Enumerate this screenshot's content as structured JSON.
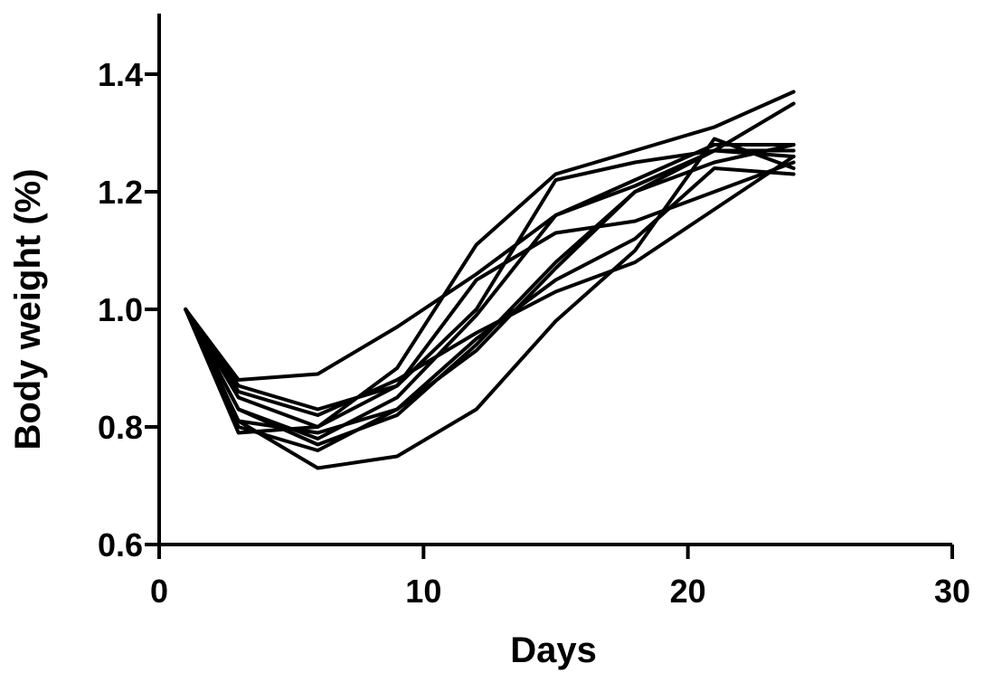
{
  "chart_data": {
    "type": "line",
    "title": "",
    "xlabel": "Days",
    "ylabel": "Body weight (%)",
    "xlim": [
      0,
      30
    ],
    "ylim": [
      0.6,
      1.5
    ],
    "xticks": [
      0,
      10,
      20,
      30
    ],
    "yticks": [
      0.6,
      0.8,
      1.0,
      1.2,
      1.4
    ],
    "xtick_labels": [
      "0",
      "10",
      "20",
      "30"
    ],
    "ytick_labels": [
      "0.6",
      "0.8",
      "1.0",
      "1.2",
      "1.4"
    ],
    "grid": false,
    "legend": "none",
    "line_color": "#000000",
    "series": [
      {
        "x": [
          1,
          3,
          6,
          9,
          12,
          15,
          18,
          21,
          24
        ],
        "values": [
          1.0,
          0.79,
          0.8,
          0.9,
          1.11,
          1.23,
          1.27,
          1.31,
          1.37
        ]
      },
      {
        "x": [
          1,
          3,
          6,
          9,
          12,
          15,
          18,
          21,
          24
        ],
        "values": [
          1.0,
          0.81,
          0.79,
          0.83,
          0.93,
          1.07,
          1.2,
          1.27,
          1.35
        ]
      },
      {
        "x": [
          1,
          3,
          6,
          9,
          12,
          15,
          18,
          21,
          24
        ],
        "values": [
          1.0,
          0.88,
          0.89,
          0.97,
          1.06,
          1.16,
          1.22,
          1.28,
          1.28
        ]
      },
      {
        "x": [
          1,
          3,
          6,
          9,
          12,
          15,
          18,
          21,
          24
        ],
        "values": [
          1.0,
          0.83,
          0.77,
          0.82,
          0.94,
          1.08,
          1.2,
          1.25,
          1.28
        ]
      },
      {
        "x": [
          1,
          3,
          6,
          9,
          12,
          15,
          18,
          21,
          24
        ],
        "values": [
          1.0,
          0.87,
          0.83,
          0.87,
          1.0,
          1.22,
          1.25,
          1.27,
          1.27
        ]
      },
      {
        "x": [
          1,
          3,
          6,
          9,
          12,
          15,
          18,
          21,
          24
        ],
        "values": [
          1.0,
          0.85,
          0.8,
          0.87,
          1.05,
          1.13,
          1.15,
          1.2,
          1.25
        ]
      },
      {
        "x": [
          1,
          3,
          6,
          9,
          12,
          15,
          18,
          21,
          24
        ],
        "values": [
          1.0,
          0.8,
          0.76,
          0.83,
          0.95,
          1.05,
          1.12,
          1.24,
          1.23
        ]
      },
      {
        "x": [
          1,
          3,
          6,
          9,
          12,
          15,
          18,
          21,
          24
        ],
        "values": [
          1.0,
          0.86,
          0.82,
          0.88,
          0.96,
          1.03,
          1.08,
          1.17,
          1.26
        ]
      },
      {
        "x": [
          1,
          3,
          6,
          9,
          12,
          15,
          18,
          21,
          24
        ],
        "values": [
          1.0,
          0.81,
          0.73,
          0.75,
          0.83,
          0.98,
          1.1,
          1.29,
          1.24
        ]
      },
      {
        "x": [
          1,
          3,
          6,
          9,
          12,
          15,
          18,
          21,
          24
        ],
        "values": [
          1.0,
          0.83,
          0.78,
          0.85,
          0.99,
          1.16,
          1.21,
          1.27,
          1.26
        ]
      }
    ]
  }
}
